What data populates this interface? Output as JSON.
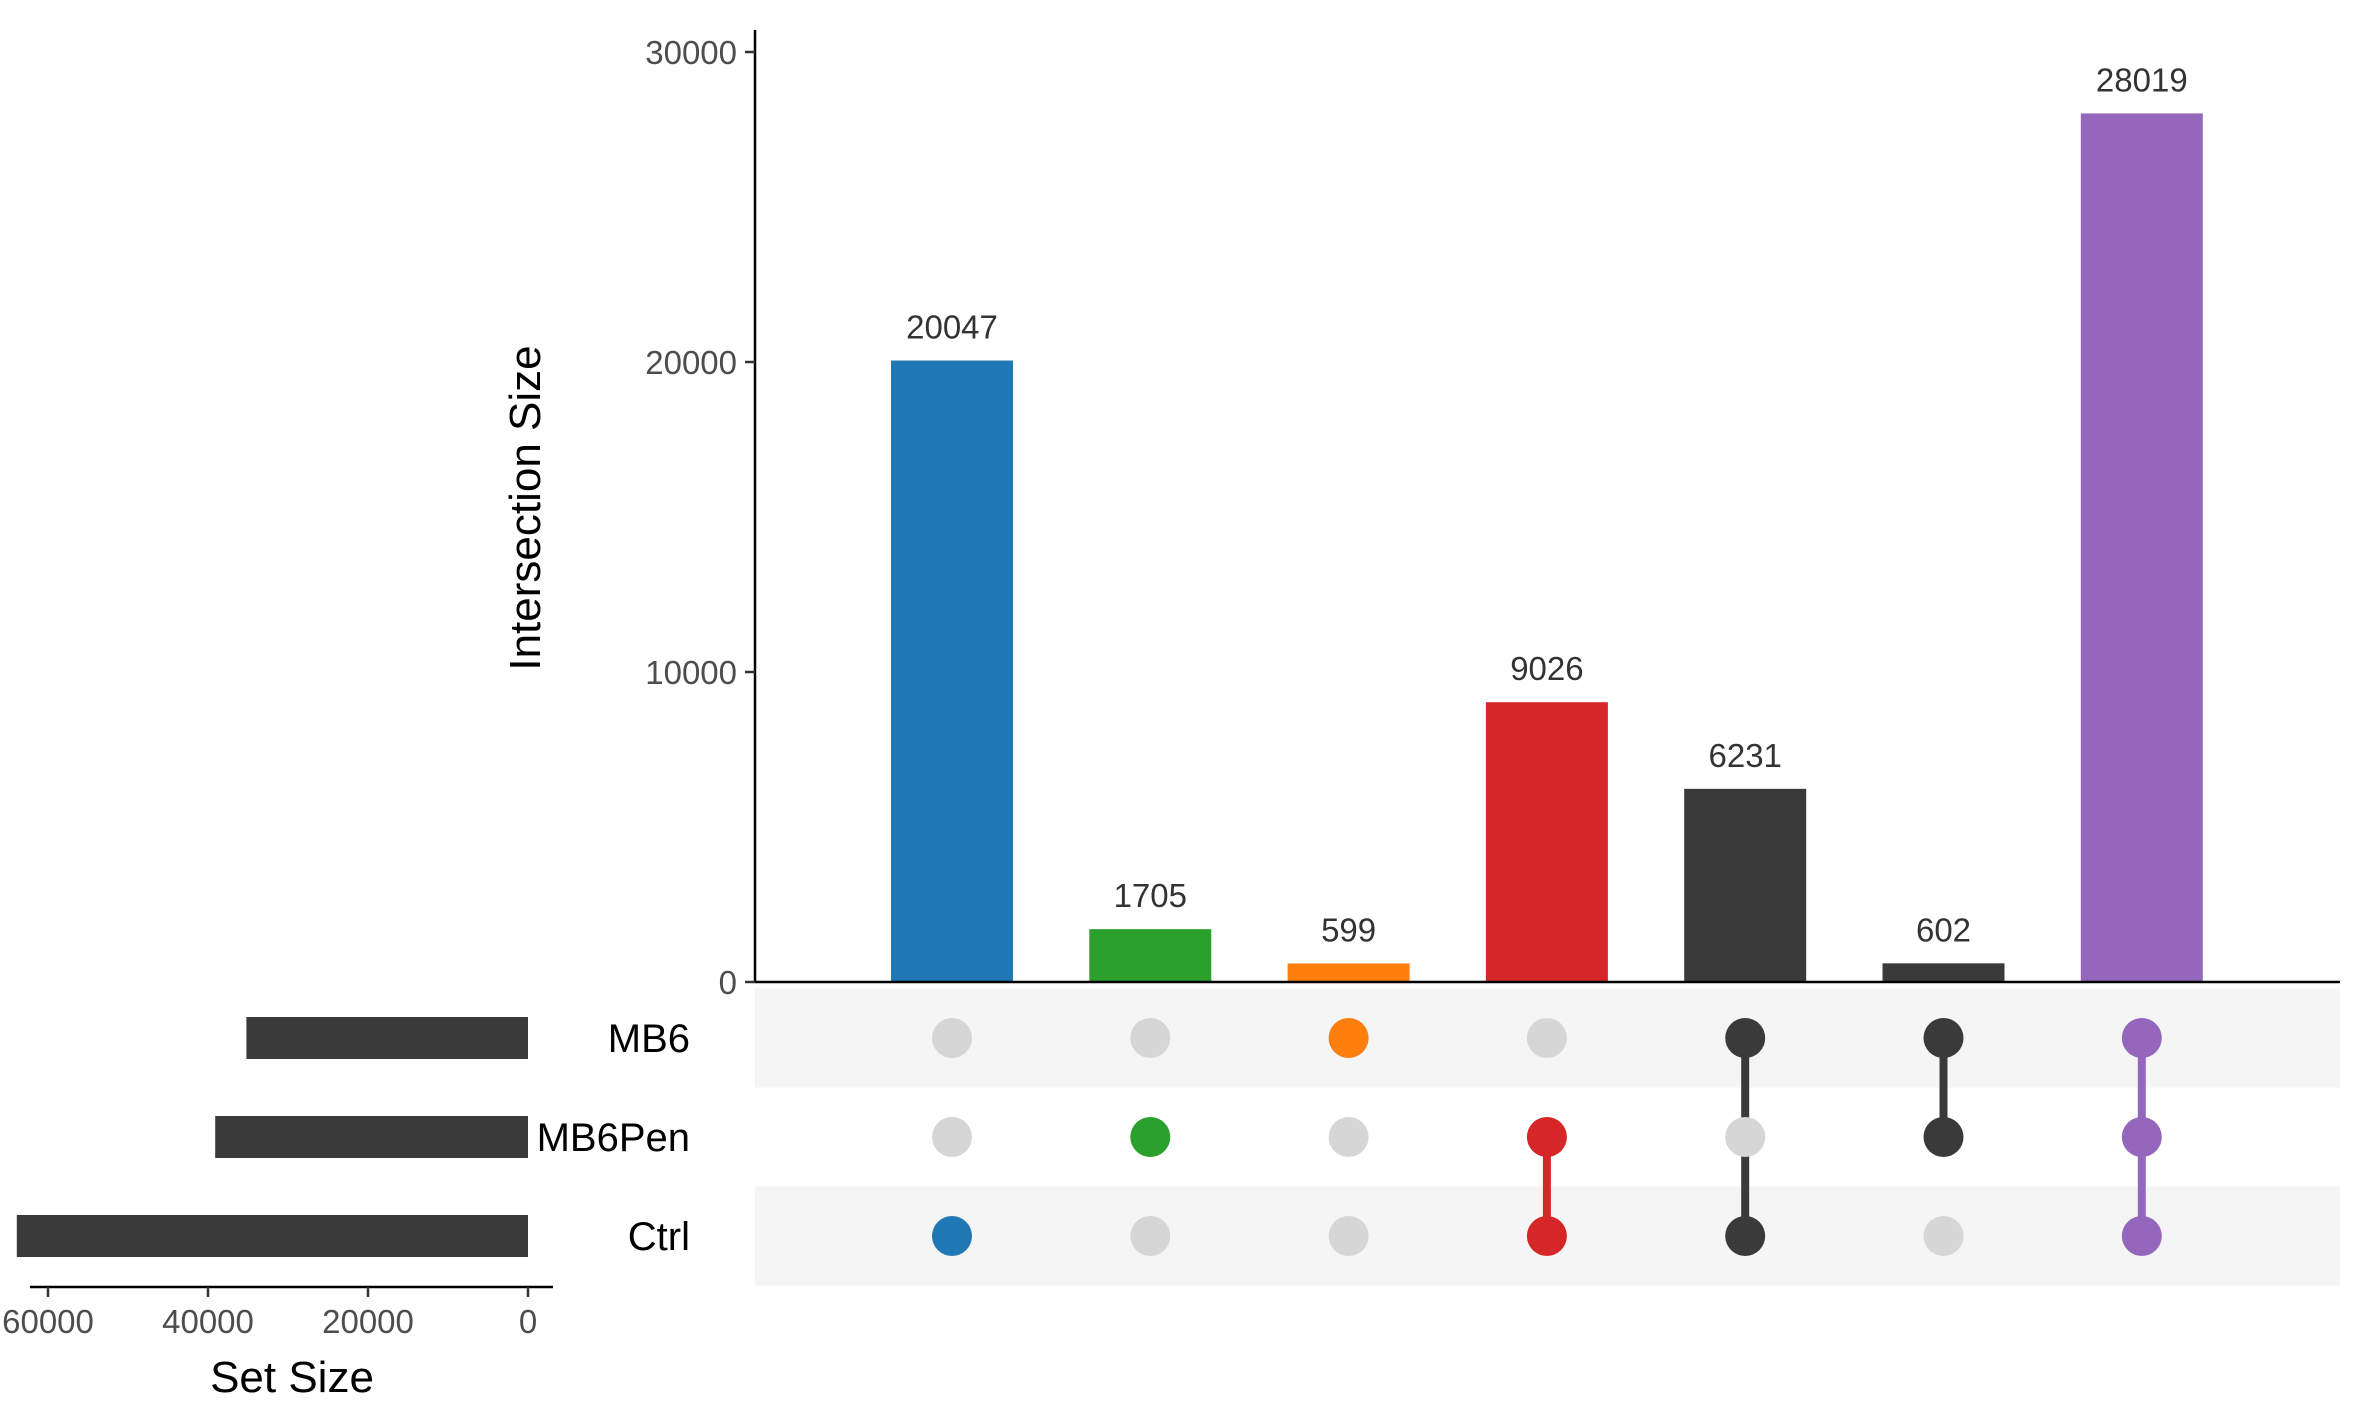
{
  "chart_data": {
    "type": "upset",
    "ylabel": "Intersection Size",
    "xlabel_sets": "Set Size",
    "ylim": [
      0,
      30000
    ],
    "yticks": [
      0,
      10000,
      20000,
      30000
    ],
    "set_size_ticks": [
      60000,
      40000,
      20000,
      0
    ],
    "sets": [
      {
        "name": "MB6",
        "size": 35200
      },
      {
        "name": "MB6Pen",
        "size": 39100
      },
      {
        "name": "Ctrl",
        "size": 63900
      }
    ],
    "intersections": [
      {
        "sets": [
          "Ctrl"
        ],
        "value": 20047,
        "color": "#1f77b4"
      },
      {
        "sets": [
          "MB6Pen"
        ],
        "value": 1705,
        "color": "#2ca02c"
      },
      {
        "sets": [
          "MB6"
        ],
        "value": 599,
        "color": "#ff7f0e"
      },
      {
        "sets": [
          "MB6Pen",
          "Ctrl"
        ],
        "value": 9026,
        "color": "#d62728"
      },
      {
        "sets": [
          "MB6",
          "Ctrl"
        ],
        "value": 6231,
        "color": "#3a3a3a"
      },
      {
        "sets": [
          "MB6",
          "MB6Pen"
        ],
        "value": 602,
        "color": "#3a3a3a"
      },
      {
        "sets": [
          "MB6",
          "MB6Pen",
          "Ctrl"
        ],
        "value": 28019,
        "color": "#9467bd"
      }
    ],
    "colors": {
      "inactive_dot": "#d6d6d6",
      "set_bar": "#3a3a3a",
      "band": "#f5f5f5"
    }
  }
}
